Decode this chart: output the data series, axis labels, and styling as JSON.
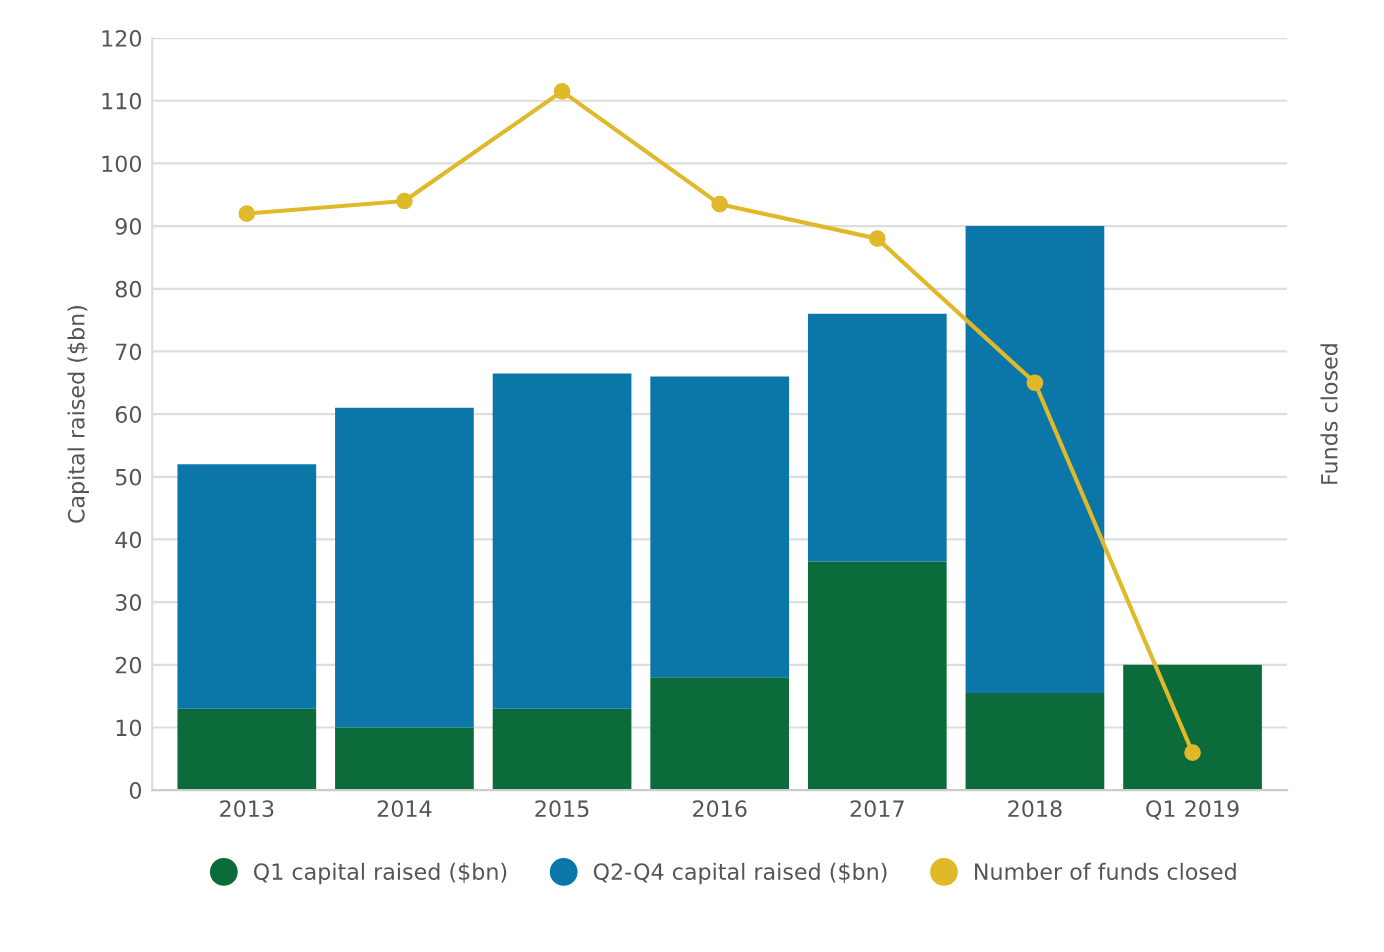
{
  "chart_data": {
    "type": "bar",
    "stacked": true,
    "ylabel": "Capital raised ($bn)",
    "y2label": "Funds closed",
    "categories": [
      "2013",
      "2014",
      "2015",
      "2016",
      "2017",
      "2018",
      "Q1 2019"
    ],
    "series": [
      {
        "name": "Q1 capital raised ($bn)",
        "color": "#0b6b3a",
        "values": [
          13,
          10,
          13,
          18,
          36.5,
          15.5,
          20
        ]
      },
      {
        "name": "Q2-Q4 capital raised ($bn)",
        "color": "#0a77a8",
        "values": [
          39,
          51,
          53.5,
          48,
          39.5,
          74.5,
          null
        ]
      },
      {
        "name": "Number of funds closed",
        "type": "line",
        "color": "#e0b92a",
        "marker": "circle",
        "values": [
          92,
          94,
          111.5,
          93.5,
          88,
          65,
          6
        ]
      }
    ],
    "ylim": [
      0,
      120
    ],
    "yticks": [
      0,
      10,
      20,
      30,
      40,
      50,
      60,
      70,
      80,
      90,
      100,
      110,
      120
    ],
    "grid": "y",
    "legend": "bottom"
  }
}
